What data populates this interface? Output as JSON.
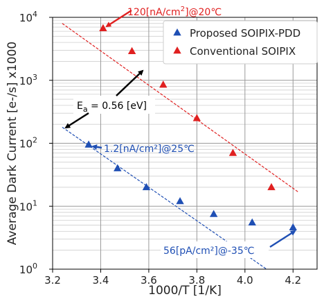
{
  "chart_data": {
    "type": "scatter",
    "xlabel": "1000/T [1/K]",
    "ylabel": "Average Dark Current [e-/s] x1000",
    "xlim": [
      3.2,
      4.3
    ],
    "ylim": [
      1,
      10000
    ],
    "yscale": "log",
    "grid": true,
    "x_ticks": [
      "3.2",
      "3.4",
      "3.6",
      "3.8",
      "4.0",
      "4.2"
    ],
    "y_ticks": [
      {
        "base": "10",
        "exp": "0"
      },
      {
        "base": "10",
        "exp": "1"
      },
      {
        "base": "10",
        "exp": "2"
      },
      {
        "base": "10",
        "exp": "3"
      },
      {
        "base": "10",
        "exp": "4"
      }
    ],
    "legend_position": "top-right",
    "series": [
      {
        "name": "Proposed SOIPIX-PDD",
        "color": "#1f4fb4",
        "marker": "triangle",
        "points": [
          {
            "x": 3.35,
            "y": 95
          },
          {
            "x": 3.47,
            "y": 40
          },
          {
            "x": 3.59,
            "y": 20
          },
          {
            "x": 3.73,
            "y": 12
          },
          {
            "x": 3.87,
            "y": 7.5
          },
          {
            "x": 4.03,
            "y": 5.5
          },
          {
            "x": 4.2,
            "y": 4.6
          }
        ]
      },
      {
        "name": "Conventional SOIPIX",
        "color": "#e02020",
        "marker": "triangle",
        "points": [
          {
            "x": 3.41,
            "y": 6700
          },
          {
            "x": 3.53,
            "y": 2900
          },
          {
            "x": 3.66,
            "y": 850
          },
          {
            "x": 3.8,
            "y": 250
          },
          {
            "x": 3.95,
            "y": 70
          },
          {
            "x": 4.11,
            "y": 20
          }
        ]
      }
    ],
    "fit_lines": [
      {
        "color": "#e02020",
        "x": [
          3.24,
          4.22
        ],
        "y": [
          8000,
          17
        ]
      },
      {
        "color": "#1f4fb4",
        "x": [
          3.24,
          4.09
        ],
        "y": [
          180,
          1.0
        ]
      }
    ],
    "annotations": {
      "top": {
        "text_pre": "120[nA/cm",
        "sup": "2",
        "text_post": "]@20℃",
        "color": "#e02020"
      },
      "mid": {
        "text": "1.2[nA/cm²]@25℃",
        "color": "#1f4fb4"
      },
      "bottom": {
        "text": "56[pA/cm²]@-35℃",
        "color": "#1f4fb4"
      },
      "activation": {
        "E": "E",
        "sub": "a",
        "rest": " = 0.56 [eV]",
        "color": "#000000"
      }
    }
  }
}
